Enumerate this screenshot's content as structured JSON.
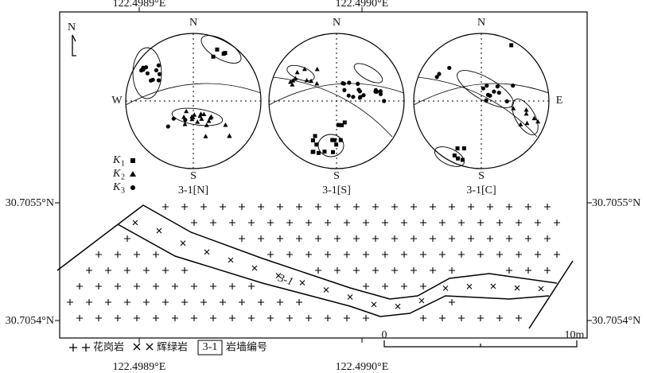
{
  "map": {
    "top_lon_labels": [
      "122.4989°E",
      "122.4990°E"
    ],
    "bottom_lon_labels": [
      "122.4989°E",
      "122.4990°E"
    ],
    "left_lat_labels": [
      "30.7055°N",
      "30.7054°N"
    ],
    "right_lat_labels": [
      "30.7055°N",
      "30.7054°N"
    ],
    "north_arrow": "N"
  },
  "stereonets": [
    {
      "caption": "3-1[N]",
      "north": "N",
      "south": "S",
      "west": "W"
    },
    {
      "caption": "3-1[S]",
      "north": "N",
      "south": "S"
    },
    {
      "caption": "3-1[C]",
      "north": "N",
      "south": "S",
      "east": "E"
    }
  ],
  "stereonet_legend": [
    {
      "letter": "K",
      "sub": "1"
    },
    {
      "letter": "K",
      "sub": "2"
    },
    {
      "letter": "K",
      "sub": "3"
    }
  ],
  "dike_label": "3-1",
  "legend": [
    {
      "label": "花岗岩"
    },
    {
      "label": "辉绿岩"
    },
    {
      "symbol": "3-1",
      "label": "岩墙编号"
    }
  ],
  "scale": {
    "start": "0",
    "end": "10m"
  }
}
